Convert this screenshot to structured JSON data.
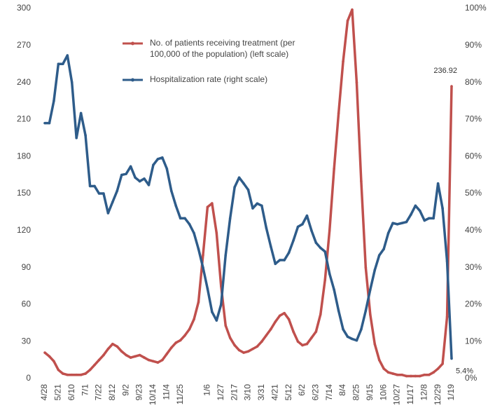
{
  "chart_data": {
    "type": "line",
    "categories": [
      "4/28",
      null,
      null,
      "5/21",
      null,
      null,
      "6/10",
      null,
      null,
      "7/1",
      null,
      null,
      "7/22",
      null,
      null,
      "8/12",
      null,
      null,
      "9/2",
      null,
      null,
      "9/23",
      null,
      null,
      "10/14",
      null,
      null,
      "11/4",
      null,
      null,
      "11/25",
      null,
      null,
      null,
      null,
      null,
      "1/6",
      null,
      null,
      "1/27",
      null,
      null,
      "2/17",
      null,
      null,
      "3/10",
      null,
      null,
      "3/31",
      null,
      null,
      "4/21",
      null,
      null,
      "5/12",
      null,
      null,
      "6/2",
      null,
      null,
      "6/23",
      null,
      null,
      "7/14",
      null,
      null,
      "8/4",
      null,
      null,
      "8/25",
      null,
      null,
      "9/15",
      null,
      null,
      "10/6",
      null,
      null,
      "10/27",
      null,
      null,
      "11/17",
      null,
      null,
      "12/8",
      null,
      null,
      "12/29",
      null,
      null,
      "1/19"
    ],
    "series": [
      {
        "name": "No. of patients receiving treatment (per 100,000 of the population) (left scale)",
        "color": "#c0504d",
        "values": [
          21,
          18,
          14,
          7,
          4,
          3,
          3,
          3,
          3,
          4,
          7,
          11,
          15,
          19,
          24,
          28,
          26,
          22,
          19,
          17,
          18,
          19,
          17,
          15,
          14,
          13,
          15,
          20,
          25,
          29,
          31,
          35,
          40,
          48,
          62,
          100,
          139,
          142,
          118,
          75,
          43,
          33,
          27,
          23,
          21,
          22,
          24,
          26,
          30,
          35,
          40,
          46,
          51,
          53,
          48,
          38,
          30,
          27,
          28,
          33,
          38,
          52,
          80,
          120,
          170,
          215,
          257,
          290,
          299,
          240,
          160,
          90,
          52,
          28,
          15,
          8,
          5,
          4,
          3,
          3,
          2,
          2,
          2,
          2,
          3,
          3,
          5,
          8,
          12,
          50,
          236.92
        ],
        "value_labels": [
          null,
          null,
          null,
          null,
          null,
          null,
          null,
          null,
          null,
          null,
          null,
          null,
          null,
          null,
          null,
          null,
          null,
          null,
          null,
          null,
          null,
          null,
          null,
          null,
          null,
          null,
          null,
          null,
          null,
          null,
          null,
          null,
          null,
          null,
          null,
          null,
          null,
          null,
          null,
          null,
          null,
          null,
          null,
          null,
          null,
          null,
          null,
          null,
          null,
          null,
          null,
          null,
          null,
          null,
          null,
          null,
          null,
          null,
          null,
          null,
          null,
          null,
          null,
          null,
          null,
          null,
          null,
          null,
          null,
          null,
          null,
          null,
          null,
          null,
          null,
          null,
          null,
          null,
          null,
          null,
          null,
          null,
          null,
          null,
          null,
          null,
          null,
          null,
          null,
          null,
          "236.92"
        ]
      },
      {
        "name": "Hospitalization rate (right scale)",
        "color": "#2e5c8a",
        "axis": "y2",
        "values": [
          69,
          69,
          75,
          85,
          85,
          87.3,
          80,
          65,
          71.7,
          65.7,
          52,
          52,
          50,
          50,
          44.7,
          47.7,
          50.7,
          55,
          55.3,
          57.3,
          54.3,
          53.3,
          54,
          52.3,
          57.7,
          59.3,
          59.7,
          56.7,
          50.7,
          46.7,
          43.3,
          43.3,
          41.7,
          39.3,
          35,
          30,
          24.3,
          18,
          15.7,
          20,
          33.3,
          43.3,
          51.7,
          54.3,
          52.7,
          51,
          46,
          47.3,
          46.7,
          40.7,
          35.7,
          31,
          32,
          32,
          34,
          37.3,
          41,
          41.7,
          44,
          40,
          36.7,
          35.3,
          34.3,
          28.3,
          24,
          18.3,
          13.3,
          11.3,
          10.7,
          10.3,
          13.3,
          18.3,
          24,
          29.3,
          33.3,
          35,
          39.3,
          42,
          41.7,
          42,
          42.3,
          44.3,
          46.7,
          45.3,
          42.7,
          43.3,
          43.3,
          52.7,
          46,
          31.7,
          5.4
        ],
        "value_labels": [
          null,
          null,
          null,
          null,
          null,
          null,
          null,
          null,
          null,
          null,
          null,
          null,
          null,
          null,
          null,
          null,
          null,
          null,
          null,
          null,
          null,
          null,
          null,
          null,
          null,
          null,
          null,
          null,
          null,
          null,
          null,
          null,
          null,
          null,
          null,
          null,
          null,
          null,
          null,
          null,
          null,
          null,
          null,
          null,
          null,
          null,
          null,
          null,
          null,
          null,
          null,
          null,
          null,
          null,
          null,
          null,
          null,
          null,
          null,
          null,
          null,
          null,
          null,
          null,
          null,
          null,
          null,
          null,
          null,
          null,
          null,
          null,
          null,
          null,
          null,
          null,
          null,
          null,
          null,
          null,
          null,
          null,
          null,
          null,
          null,
          null,
          null,
          null,
          null,
          null,
          "5.4%"
        ]
      }
    ],
    "ylim": [
      0,
      300
    ],
    "yticks": [
      0,
      30,
      60,
      90,
      120,
      150,
      180,
      210,
      240,
      270,
      300
    ],
    "y2lim": [
      0,
      100
    ],
    "y2ticks": [
      {
        "value": 0,
        "label": "0%"
      },
      {
        "value": 10,
        "label": "10%"
      },
      {
        "value": 20,
        "label": "20%"
      },
      {
        "value": 30,
        "label": "30%"
      },
      {
        "value": 40,
        "label": "40%"
      },
      {
        "value": 50,
        "label": "50%"
      },
      {
        "value": 60,
        "label": "60%"
      },
      {
        "value": 70,
        "label": "70%"
      },
      {
        "value": 80,
        "label": "80%"
      },
      {
        "value": 90,
        "label": "90%"
      },
      {
        "value": 100,
        "label": "100%"
      }
    ],
    "grid": false,
    "legend": "top"
  }
}
